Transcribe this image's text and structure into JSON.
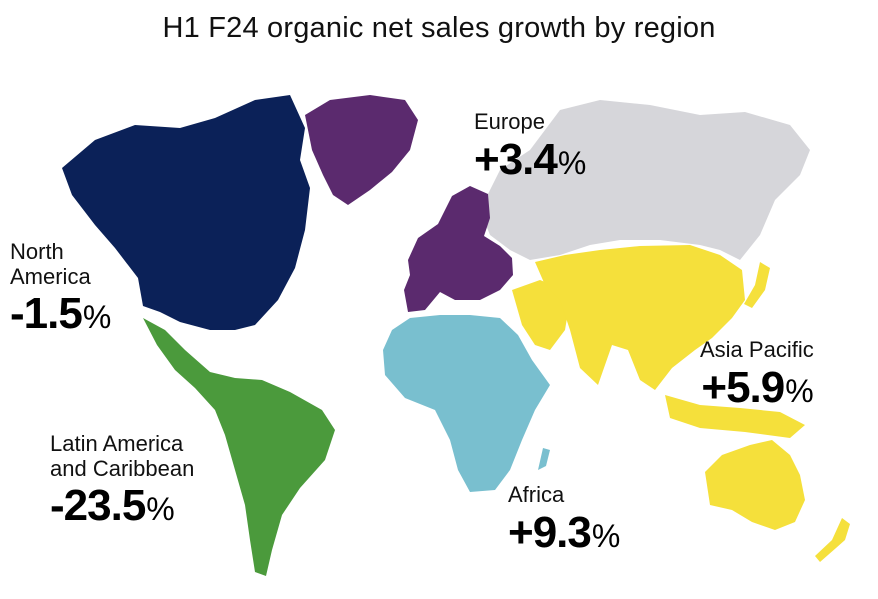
{
  "title": "H1 F24 organic net sales growth by region",
  "regions": {
    "europe": {
      "name": "Europe",
      "value": "+3.4",
      "unit": "%",
      "color": "#5b2a6e"
    },
    "north_america": {
      "name_line1": "North",
      "name_line2": "America",
      "value": "-1.5",
      "unit": "%",
      "color": "#0b2158"
    },
    "latin_america": {
      "name_line1": "Latin America",
      "name_line2": "and Caribbean",
      "value": "-23.5",
      "unit": "%",
      "color": "#4b9a3c"
    },
    "asia_pacific": {
      "name": "Asia Pacific",
      "value": "+5.9",
      "unit": "%",
      "color": "#f5e03b"
    },
    "africa": {
      "name": "Africa",
      "value": "+9.3",
      "unit": "%",
      "color": "#79bfcf"
    },
    "other": {
      "color": "#d6d6da"
    }
  }
}
